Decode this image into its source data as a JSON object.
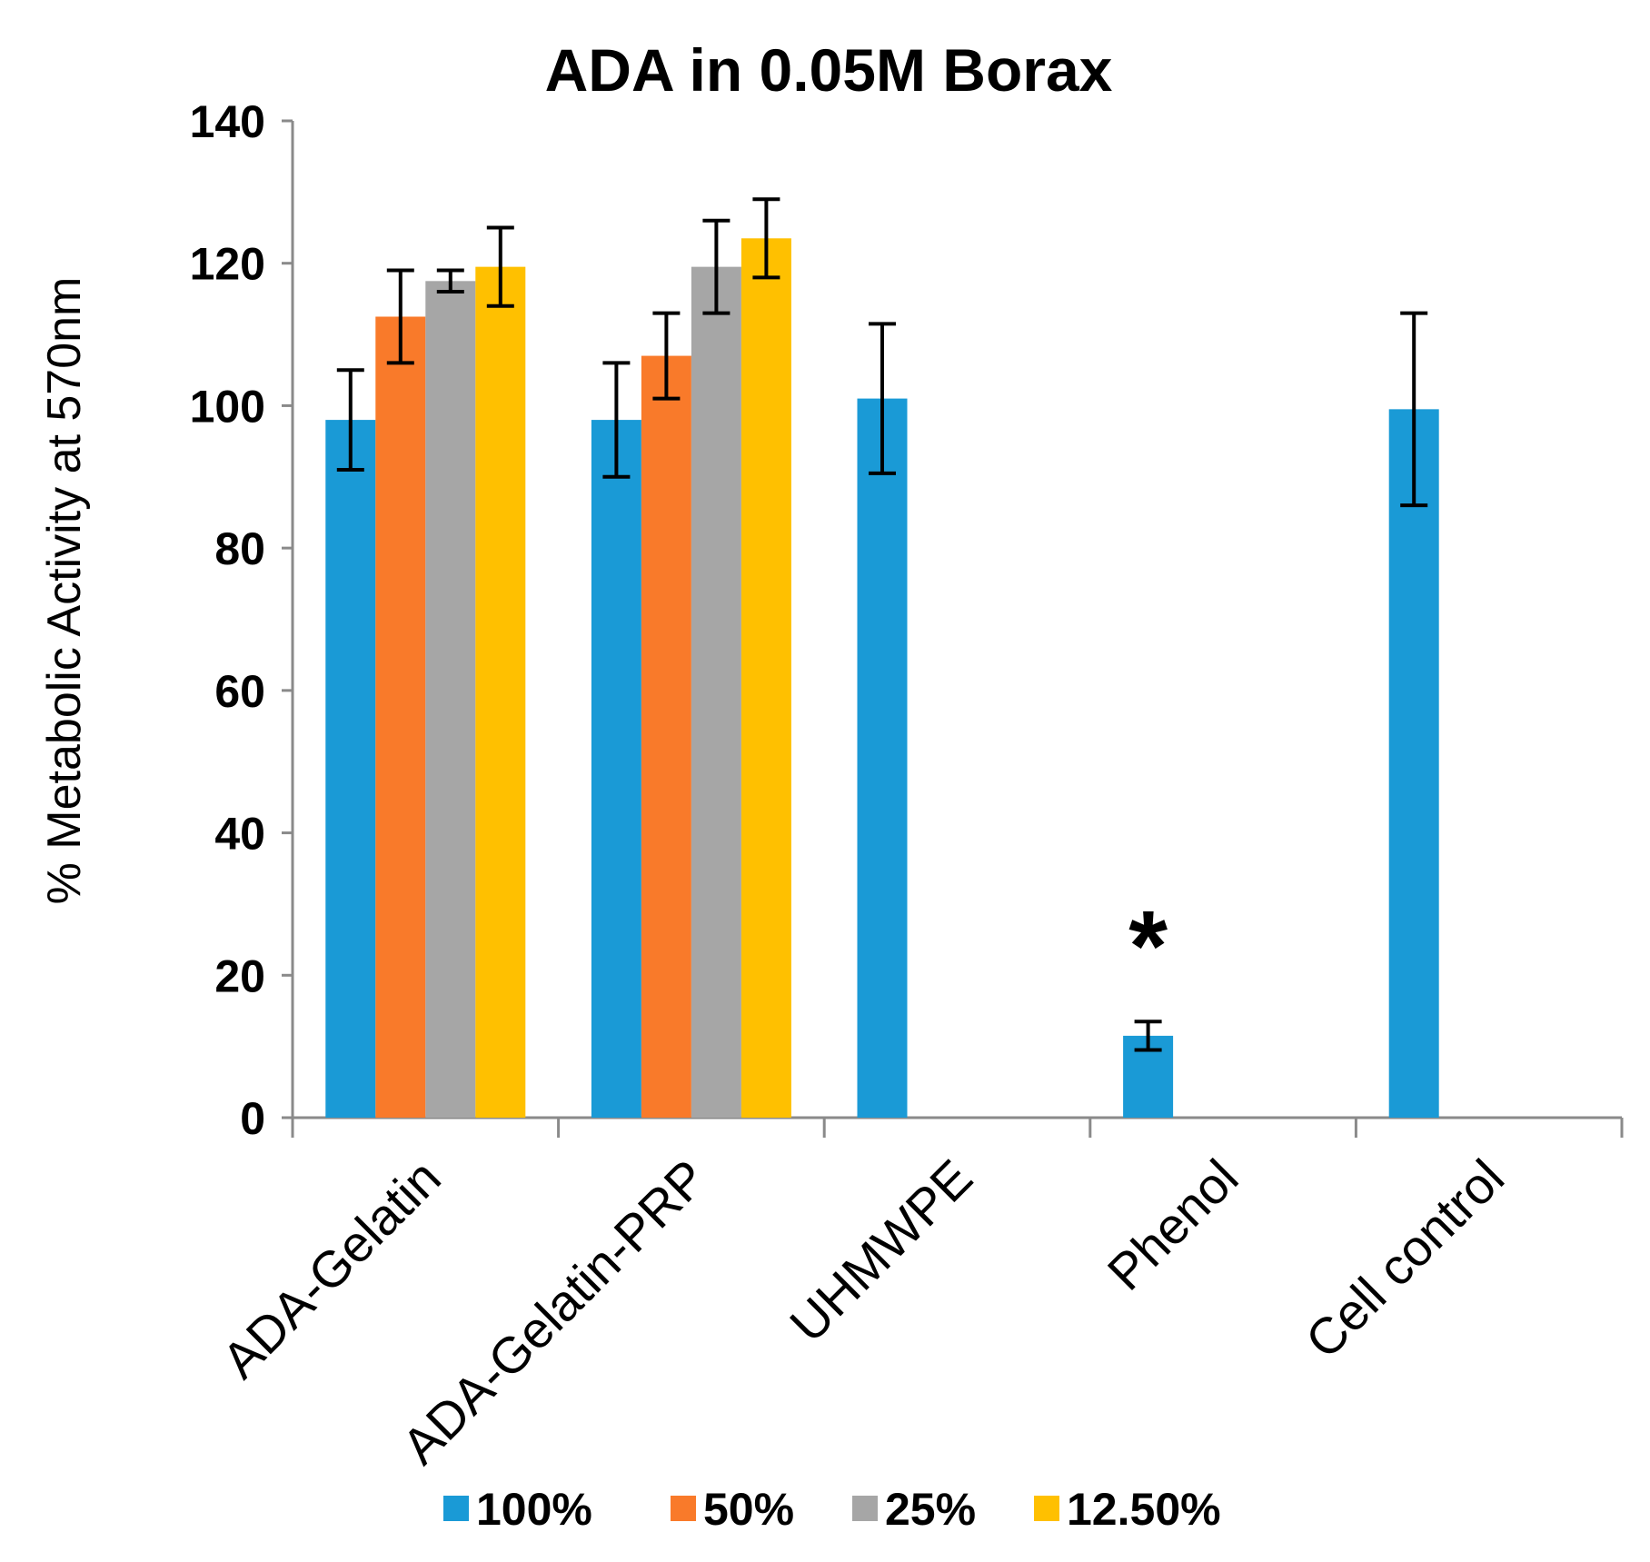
{
  "chart_data": {
    "type": "bar",
    "title": "ADA in 0.05M Borax",
    "xlabel": "",
    "ylabel": "% Metabolic Activity at 570nm",
    "ylim": [
      0,
      140
    ],
    "yticks": [
      0,
      20,
      40,
      60,
      80,
      100,
      120,
      140
    ],
    "ytick_labels": [
      "0",
      "20",
      "40",
      "60",
      "80",
      "100",
      "120",
      "140"
    ],
    "categories": [
      "ADA-Gelatin",
      "ADA-Gelatin-PRP",
      "UHMWPE",
      "Phenol",
      "Cell control"
    ],
    "series": [
      {
        "name": "100%",
        "label": "100%",
        "color": "#1a9ad6",
        "values": [
          98,
          98,
          101,
          11.5,
          99.5
        ],
        "errors": [
          7,
          8,
          10.5,
          2,
          13.5
        ]
      },
      {
        "name": "50%",
        "label": "50%",
        "color": "#f97a2a",
        "values": [
          112.5,
          107,
          null,
          null,
          null
        ],
        "errors": [
          6.5,
          6,
          null,
          null,
          null
        ]
      },
      {
        "name": "25%",
        "label": "25%",
        "color": "#a6a6a6",
        "values": [
          117.5,
          119.5,
          null,
          null,
          null
        ],
        "errors": [
          1.5,
          6.5,
          null,
          null,
          null
        ]
      },
      {
        "name": "12.50%",
        "label": "12.50%",
        "color": "#ffc000",
        "values": [
          119.5,
          123.5,
          null,
          null,
          null
        ],
        "errors": [
          5.5,
          5.5,
          null,
          null,
          null
        ]
      }
    ],
    "annotations": [
      {
        "text": "*",
        "category": "Phenol",
        "series": "100%"
      }
    ],
    "legend_position": "bottom",
    "grid": false
  }
}
